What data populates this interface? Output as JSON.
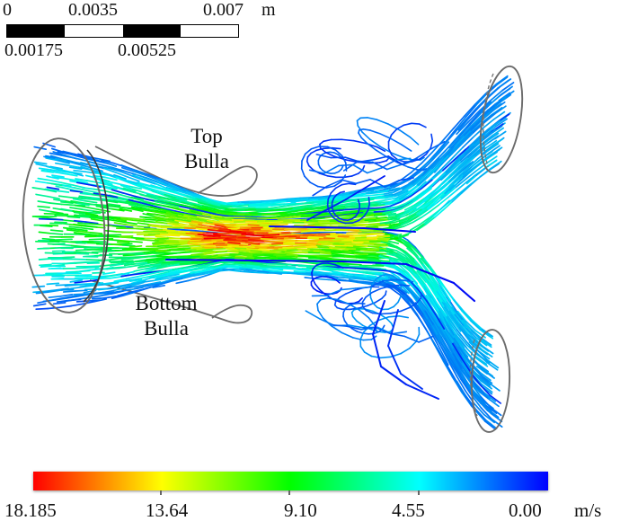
{
  "scale_bar": {
    "unit": "m",
    "ticks_top": [
      "0",
      "0.0035",
      "0.007"
    ],
    "ticks_bottom": [
      "0.00175",
      "0.00525"
    ],
    "segment_colors": [
      "#000000",
      "#ffffff",
      "#000000",
      "#ffffff"
    ],
    "total_length_m": 0.007
  },
  "annotations": {
    "top_bulla_line1": "Top",
    "top_bulla_line2": "Bulla",
    "bottom_bulla_line1": "Bottom",
    "bottom_bulla_line2": "Bulla"
  },
  "colorbar": {
    "unit": "m/s",
    "tick_labels": [
      "18.185",
      "13.64",
      "9.10",
      "4.55",
      "0.00"
    ],
    "min": 0.0,
    "max": 18.185,
    "direction": "max at left, min at right",
    "gradient_stops": [
      "#ff0000",
      "#ff8000",
      "#ffff00",
      "#80ff00",
      "#00ff00",
      "#00ff80",
      "#00ffff",
      "#0080ff",
      "#0000ff"
    ]
  },
  "chart_data": {
    "type": "streamline-flow",
    "title": "",
    "quantity": "velocity magnitude",
    "velocity_scale": {
      "unit": "m/s",
      "ticks": [
        18.185,
        13.64,
        9.1,
        4.55,
        0.0
      ],
      "min": 0.0,
      "max": 18.185,
      "colormap": "rainbow (red=fast, blue=slow)"
    },
    "spatial_scale": {
      "unit": "m",
      "major_ticks": [
        0,
        0.0035,
        0.007
      ],
      "minor_ticks": [
        0.00175,
        0.00525
      ]
    },
    "annotations": [
      "Top Bulla",
      "Bottom Bulla"
    ],
    "flow_description": {
      "inlet": "single wide inlet ellipse at left, slow flow ~2-8 m/s (blue/cyan/green)",
      "constriction": "flow accelerates to ~18 m/s (red/orange core) in narrow waist between top and bottom bulla",
      "outlets": "flow bifurcates to two outlet ellipses at upper-right and lower-right, decelerating to ~2-5 m/s (cyan/blue)",
      "recirculation": "slow blue swirling eddies above and below the main jet near the bifurcation"
    }
  }
}
